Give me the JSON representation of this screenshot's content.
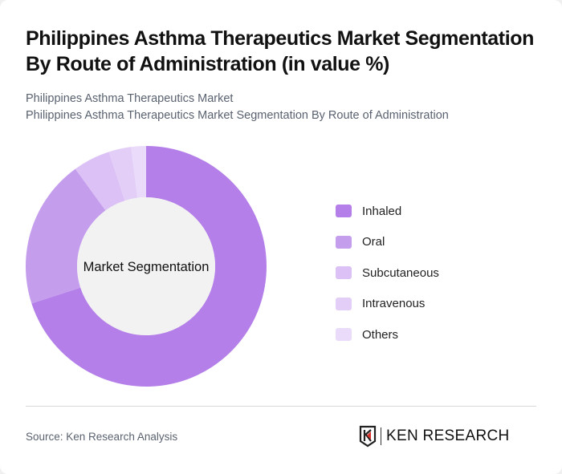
{
  "header": {
    "title": "Philippines Asthma Therapeutics Market Segmentation By Route of Administration (in value %)",
    "subtitle_line1": "Philippines Asthma Therapeutics Market",
    "subtitle_line2": "Philippines Asthma Therapeutics Market Segmentation By Route of Administration"
  },
  "chart": {
    "center_label": "Market Segmentation"
  },
  "legend": {
    "items": [
      {
        "label": "Inhaled",
        "color": "#b47fe8"
      },
      {
        "label": "Oral",
        "color": "#c59ded"
      },
      {
        "label": "Subcutaneous",
        "color": "#dbc1f5"
      },
      {
        "label": "Intravenous",
        "color": "#e3cef7"
      },
      {
        "label": "Others",
        "color": "#e9dbf9"
      }
    ]
  },
  "footer": {
    "source": "Source: Ken Research Analysis",
    "logo_text": "KEN RESEARCH"
  },
  "chart_data": {
    "type": "pie",
    "subtype": "donut",
    "title": "Philippines Asthma Therapeutics Market Segmentation By Route of Administration (in value %)",
    "center_label": "Market Segmentation",
    "categories": [
      "Inhaled",
      "Oral",
      "Subcutaneous",
      "Intravenous",
      "Others"
    ],
    "values": [
      70,
      20,
      5,
      3,
      2
    ],
    "colors": [
      "#b47fe8",
      "#c59ded",
      "#dbc1f5",
      "#e3cef7",
      "#e9dbf9"
    ],
    "legend_position": "right",
    "start_angle": "top, clockwise"
  }
}
